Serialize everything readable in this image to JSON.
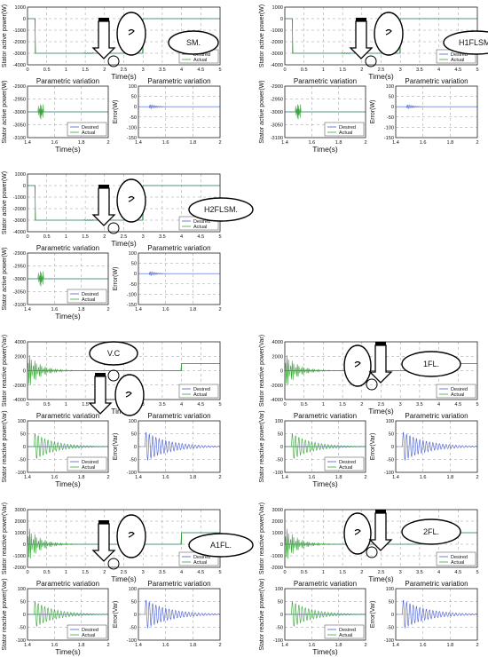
{
  "colors": {
    "desired": "#4a5fd0",
    "actual": "#3aa33a",
    "grid": "#9a9a9a"
  },
  "chart_data": [
    {
      "type": "line",
      "panel": "main",
      "xlabel": "Time(s)",
      "ylabel": "Stator active power(W)",
      "xlim": [
        0,
        5
      ],
      "ylim": [
        -4000,
        1000
      ],
      "xticks": [
        "0",
        "0.5",
        "1",
        "1.5",
        "2",
        "2.5",
        "3",
        "3.5",
        "4",
        "4.5",
        "5"
      ],
      "yticks": [
        "1000",
        "0",
        "-1000",
        "-2000",
        "-3000",
        "-4000"
      ],
      "series": [
        {
          "name": "Desired",
          "x": [
            0,
            0.2,
            0.2,
            3,
            3,
            5
          ],
          "y": [
            0,
            0,
            -3000,
            -3000,
            0,
            0
          ]
        },
        {
          "name": "Actual",
          "x": [
            0,
            0.2,
            0.2,
            3,
            3,
            5
          ],
          "y": [
            0,
            0,
            -3000,
            -3000,
            0,
            0
          ]
        }
      ],
      "annotation": "SM."
    },
    {
      "type": "line",
      "panel": "zoom",
      "title": "Parametric variation",
      "xlabel": "Time(s)",
      "ylabel": "Stator active power(W)",
      "xlim": [
        1.4,
        2
      ],
      "ylim": [
        -3100,
        -2900
      ],
      "xticks": [
        "1.4",
        "1.6",
        "1.8",
        "2"
      ],
      "yticks": [
        "-2900",
        "-2950",
        "-3000",
        "-3050",
        "-3100"
      ],
      "series": [
        {
          "name": "Desired",
          "x": [
            1.4,
            2
          ],
          "y": [
            -3000,
            -3000
          ]
        },
        {
          "name": "Actual",
          "x": [
            1.4,
            2
          ],
          "y": [
            -3000,
            -3000
          ]
        }
      ]
    },
    {
      "type": "line",
      "panel": "error",
      "title": "Parametric variation",
      "xlabel": "",
      "ylabel": "Error(W)",
      "xlim": [
        1.4,
        2
      ],
      "ylim": [
        -150,
        100
      ],
      "xticks": [
        "1.4",
        "1.6",
        "1.8",
        "2"
      ],
      "yticks": [
        "100",
        "50",
        "0",
        "-50",
        "-100",
        "-150"
      ],
      "series": [
        {
          "name": "",
          "x": [
            1.4,
            2
          ],
          "y": [
            -5,
            0
          ]
        }
      ]
    },
    {
      "type": "line",
      "panel": "main",
      "xlabel": "Time(s)",
      "ylabel": "Stator active power(W)",
      "xlim": [
        0,
        5
      ],
      "ylim": [
        -4000,
        1000
      ],
      "xticks": [
        "0",
        "0.5",
        "1",
        "1.5",
        "2",
        "2.5",
        "3",
        "3.5",
        "4",
        "4.5",
        "5"
      ],
      "yticks": [
        "1000",
        "0",
        "-1000",
        "-2000",
        "-3000",
        "-4000"
      ],
      "series": [
        {
          "name": "Desired",
          "x": [
            0,
            0.2,
            0.2,
            3,
            3,
            5
          ],
          "y": [
            0,
            0,
            -3000,
            -3000,
            0,
            0
          ]
        },
        {
          "name": "Actual",
          "x": [
            0,
            0.2,
            0.2,
            3,
            3,
            5
          ],
          "y": [
            0,
            0,
            -3000,
            -3000,
            0,
            0
          ]
        }
      ],
      "annotation": "H1FLSM."
    },
    {
      "type": "line",
      "panel": "zoom",
      "title": "Parametric variation",
      "xlabel": "Time(s)",
      "ylabel": "Stator active power(W)",
      "xlim": [
        1.4,
        2
      ],
      "ylim": [
        -3100,
        -2900
      ],
      "xticks": [
        "1.4",
        "1.6",
        "1.8",
        "2"
      ],
      "yticks": [
        "-2900",
        "-2950",
        "-3000",
        "-3050",
        "-3100"
      ],
      "series": [
        {
          "name": "Desired",
          "x": [
            1.4,
            2
          ],
          "y": [
            -3000,
            -3000
          ]
        },
        {
          "name": "Actual",
          "x": [
            1.4,
            2
          ],
          "y": [
            -3000,
            -3000
          ]
        }
      ]
    },
    {
      "type": "line",
      "panel": "error",
      "title": "Parametric variation",
      "xlabel": "",
      "ylabel": "Error(W)",
      "xlim": [
        1.4,
        2
      ],
      "ylim": [
        -150,
        100
      ],
      "xticks": [
        "1.4",
        "1.6",
        "1.8",
        "2"
      ],
      "yticks": [
        "100",
        "50",
        "0",
        "-50",
        "-100",
        "-150"
      ],
      "series": [
        {
          "name": "",
          "x": [
            1.4,
            2
          ],
          "y": [
            0,
            0
          ]
        }
      ]
    },
    {
      "type": "line",
      "panel": "main",
      "xlabel": "Time(s)",
      "ylabel": "Stator active power(W)",
      "xlim": [
        0,
        5
      ],
      "ylim": [
        -4000,
        1000
      ],
      "xticks": [
        "0",
        "0.5",
        "1",
        "1.5",
        "2",
        "2.5",
        "3",
        "3.5",
        "4",
        "4.5",
        "5"
      ],
      "yticks": [
        "1000",
        "0",
        "-1000",
        "-2000",
        "-3000",
        "-4000"
      ],
      "series": [
        {
          "name": "Desired",
          "x": [
            0,
            0.2,
            0.2,
            3,
            3,
            5
          ],
          "y": [
            0,
            0,
            -3000,
            -3000,
            0,
            0
          ]
        },
        {
          "name": "Actual",
          "x": [
            0,
            0.2,
            0.2,
            3,
            3,
            5
          ],
          "y": [
            0,
            0,
            -3000,
            -3000,
            0,
            0
          ]
        }
      ],
      "annotation": "H2FLSM."
    },
    {
      "type": "line",
      "panel": "zoom",
      "title": "Parametric variation",
      "xlabel": "Time(s)",
      "ylabel": "Stator active power(W)",
      "xlim": [
        1.4,
        2
      ],
      "ylim": [
        -3100,
        -2900
      ],
      "xticks": [
        "1.4",
        "1.6",
        "1.8",
        "2"
      ],
      "yticks": [
        "-2900",
        "-2950",
        "-3000",
        "-3050",
        "-3100"
      ],
      "series": [
        {
          "name": "Desired",
          "x": [
            1.4,
            2
          ],
          "y": [
            -3000,
            -3000
          ]
        },
        {
          "name": "Actual",
          "x": [
            1.4,
            2
          ],
          "y": [
            -3000,
            -3000
          ]
        }
      ]
    },
    {
      "type": "line",
      "panel": "error",
      "title": "Parametric variation",
      "xlabel": "",
      "ylabel": "Error(W)",
      "xlim": [
        1.4,
        2
      ],
      "ylim": [
        -150,
        100
      ],
      "xticks": [
        "1.4",
        "1.6",
        "1.8",
        "2"
      ],
      "yticks": [
        "100",
        "50",
        "0",
        "-50",
        "-100",
        "-150"
      ],
      "series": [
        {
          "name": "",
          "x": [
            1.4,
            2
          ],
          "y": [
            0,
            0
          ]
        }
      ]
    },
    {
      "type": "line",
      "panel": "main",
      "xlabel": "Time(s)",
      "ylabel": "Stator reactive power(Var)",
      "xlim": [
        0,
        5
      ],
      "ylim": [
        -4000,
        4000
      ],
      "xticks": [
        "0",
        "0.5",
        "1",
        "1.5",
        "2",
        "2.5",
        "3",
        "3.5",
        "4",
        "4.5",
        "5"
      ],
      "yticks": [
        "4000",
        "2000",
        "0",
        "-2000",
        "-4000"
      ],
      "series": [
        {
          "name": "Desired",
          "x": [
            0,
            4,
            4,
            5
          ],
          "y": [
            0,
            0,
            1000,
            1000
          ]
        },
        {
          "name": "Actual",
          "x": [
            0,
            4,
            4,
            5
          ],
          "y": [
            0,
            0,
            1000,
            1000
          ]
        }
      ],
      "annotation": "V.C"
    },
    {
      "type": "line",
      "panel": "zoom",
      "title": "Parametric variation",
      "xlabel": "Time(s)",
      "ylabel": "Stator reactive power(Var)",
      "xlim": [
        1.4,
        2
      ],
      "ylim": [
        -100,
        100
      ],
      "xticks": [
        "1.4",
        "1.6",
        "1.8",
        "2"
      ],
      "yticks": [
        "100",
        "50",
        "0",
        "-50",
        "-100"
      ],
      "series": [
        {
          "name": "Desired",
          "x": [
            1.4,
            2
          ],
          "y": [
            0,
            0
          ]
        },
        {
          "name": "Actual",
          "x": [
            1.4,
            2
          ],
          "y": [
            0,
            0
          ]
        }
      ]
    },
    {
      "type": "line",
      "panel": "error",
      "title": "Parametric variation",
      "xlabel": "",
      "ylabel": "Error(Var)",
      "xlim": [
        1.4,
        2
      ],
      "ylim": [
        -100,
        100
      ],
      "xticks": [
        "1.4",
        "1.6",
        "1.8",
        "2"
      ],
      "yticks": [
        "100",
        "50",
        "0",
        "-50",
        "-100"
      ],
      "series": [
        {
          "name": "",
          "x": [
            1.4,
            2
          ],
          "y": [
            0,
            0
          ]
        }
      ]
    },
    {
      "type": "line",
      "panel": "main",
      "xlabel": "Time(s)",
      "ylabel": "Stator reactive power(Var)",
      "xlim": [
        0,
        5
      ],
      "ylim": [
        -4000,
        4000
      ],
      "xticks": [
        "0",
        "0.5",
        "1",
        "1.5",
        "2",
        "2.5",
        "3",
        "3.5",
        "4",
        "4.5",
        "5"
      ],
      "yticks": [
        "4000",
        "2000",
        "0",
        "-2000",
        "-4000"
      ],
      "series": [
        {
          "name": "Desired",
          "x": [
            0,
            4,
            4,
            5
          ],
          "y": [
            0,
            0,
            1000,
            1000
          ]
        },
        {
          "name": "Actual",
          "x": [
            0,
            4,
            4,
            5
          ],
          "y": [
            0,
            0,
            1000,
            1000
          ]
        }
      ],
      "annotation": "1FL."
    },
    {
      "type": "line",
      "panel": "zoom",
      "title": "Parametric variation",
      "xlabel": "Time(s)",
      "ylabel": "Stator reactive power(Var)",
      "xlim": [
        1.4,
        2
      ],
      "ylim": [
        -100,
        100
      ],
      "xticks": [
        "1.4",
        "1.6",
        "1.8",
        "2"
      ],
      "yticks": [
        "100",
        "50",
        "0",
        "-50",
        "-100"
      ],
      "series": [
        {
          "name": "Desired",
          "x": [
            1.4,
            2
          ],
          "y": [
            0,
            0
          ]
        },
        {
          "name": "Actual",
          "x": [
            1.4,
            2
          ],
          "y": [
            0,
            0
          ]
        }
      ]
    },
    {
      "type": "line",
      "panel": "error",
      "title": "Parametric variation",
      "xlabel": "",
      "ylabel": "Error(Var)",
      "xlim": [
        1.4,
        2
      ],
      "ylim": [
        -100,
        100
      ],
      "xticks": [
        "1.4",
        "1.6",
        "1.8",
        "2"
      ],
      "yticks": [
        "100",
        "50",
        "0",
        "-50",
        "-100"
      ],
      "series": [
        {
          "name": "",
          "x": [
            1.4,
            2
          ],
          "y": [
            0,
            0
          ]
        }
      ]
    },
    {
      "type": "line",
      "panel": "main",
      "xlabel": "Time(s)",
      "ylabel": "Stator reactive power(Var)",
      "xlim": [
        0,
        5
      ],
      "ylim": [
        -2000,
        3000
      ],
      "xticks": [
        "0",
        "0.5",
        "1",
        "1.5",
        "2",
        "2.5",
        "3",
        "3.5",
        "4",
        "4.5",
        "5"
      ],
      "yticks": [
        "3000",
        "2000",
        "1000",
        "0",
        "-1000",
        "-2000"
      ],
      "series": [
        {
          "name": "Desired",
          "x": [
            0,
            4,
            4,
            5
          ],
          "y": [
            0,
            0,
            1000,
            1000
          ]
        },
        {
          "name": "Actual",
          "x": [
            0,
            4,
            4,
            5
          ],
          "y": [
            0,
            0,
            1000,
            1000
          ]
        }
      ],
      "annotation": "A1FL."
    },
    {
      "type": "line",
      "panel": "zoom",
      "title": "Parametric variation",
      "xlabel": "Time(s)",
      "ylabel": "Stator reactive power(Var)",
      "xlim": [
        1.4,
        2
      ],
      "ylim": [
        -100,
        100
      ],
      "xticks": [
        "1.4",
        "1.6",
        "1.8",
        "2"
      ],
      "yticks": [
        "100",
        "50",
        "0",
        "-50",
        "-100"
      ],
      "series": [
        {
          "name": "Desired",
          "x": [
            1.4,
            2
          ],
          "y": [
            0,
            0
          ]
        },
        {
          "name": "Actual",
          "x": [
            1.4,
            2
          ],
          "y": [
            0,
            0
          ]
        }
      ]
    },
    {
      "type": "line",
      "panel": "error",
      "title": "Parametric variation",
      "xlabel": "",
      "ylabel": "Error(Var)",
      "xlim": [
        1.4,
        2
      ],
      "ylim": [
        -100,
        100
      ],
      "xticks": [
        "1.4",
        "1.6",
        "1.8",
        "2"
      ],
      "yticks": [
        "100",
        "50",
        "0",
        "-50",
        "-100"
      ],
      "series": [
        {
          "name": "",
          "x": [
            1.4,
            2
          ],
          "y": [
            0,
            0
          ]
        }
      ]
    },
    {
      "type": "line",
      "panel": "main",
      "xlabel": "Time(s)",
      "ylabel": "Stator reactive power(Var)",
      "xlim": [
        0,
        5
      ],
      "ylim": [
        -2000,
        3000
      ],
      "xticks": [
        "0",
        "0.5",
        "1",
        "1.5",
        "2",
        "2.5",
        "3",
        "3.5",
        "4",
        "4.5",
        "5"
      ],
      "yticks": [
        "3000",
        "2000",
        "1000",
        "0",
        "-1000",
        "-2000"
      ],
      "series": [
        {
          "name": "Desired",
          "x": [
            0,
            4,
            4,
            5
          ],
          "y": [
            0,
            0,
            1000,
            1000
          ]
        },
        {
          "name": "Actual",
          "x": [
            0,
            4,
            4,
            5
          ],
          "y": [
            0,
            0,
            1000,
            1000
          ]
        }
      ],
      "annotation": "2FL."
    },
    {
      "type": "line",
      "panel": "zoom",
      "title": "Parametric variation",
      "xlabel": "Time(s)",
      "ylabel": "Stator reactive power(Var)",
      "xlim": [
        1.4,
        2
      ],
      "ylim": [
        -100,
        100
      ],
      "xticks": [
        "1.4",
        "1.6",
        "1.8",
        "2"
      ],
      "yticks": [
        "100",
        "50",
        "0",
        "-50",
        "-100"
      ],
      "series": [
        {
          "name": "Desired",
          "x": [
            1.4,
            2
          ],
          "y": [
            0,
            0
          ]
        },
        {
          "name": "Actual",
          "x": [
            1.4,
            2
          ],
          "y": [
            0,
            0
          ]
        }
      ]
    },
    {
      "type": "line",
      "panel": "error",
      "title": "Parametric variation",
      "xlabel": "",
      "ylabel": "Error(Var)",
      "xlim": [
        1.4,
        2
      ],
      "ylim": [
        -100,
        100
      ],
      "xticks": [
        "1.4",
        "1.6",
        "1.8",
        "2"
      ],
      "yticks": [
        "100",
        "50",
        "0",
        "-50",
        "-100"
      ],
      "series": [
        {
          "name": "",
          "x": [
            1.4,
            2
          ],
          "y": [
            0,
            0
          ]
        }
      ]
    }
  ]
}
